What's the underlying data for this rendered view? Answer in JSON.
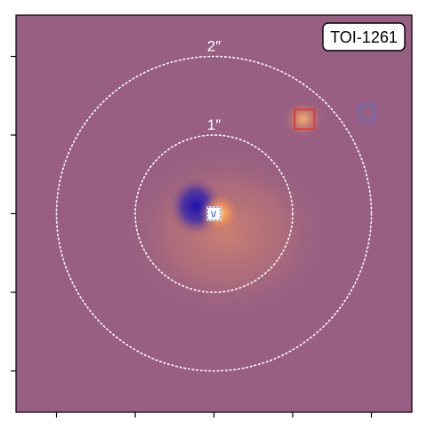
{
  "chart_data": {
    "type": "heatmap",
    "target": "TOI-1261",
    "rings": [
      {
        "radius_arcsec": 1,
        "label": "1″"
      },
      {
        "radius_arcsec": 2,
        "label": "2″"
      }
    ],
    "x_ticks_arcsec": [
      -2,
      -1,
      0,
      1,
      2
    ],
    "y_ticks_arcsec": [
      2,
      1,
      0,
      -1,
      -2
    ],
    "axis_range_arcsec": [
      -2.5,
      2.5
    ],
    "sources": [
      {
        "x": 0.0,
        "y": 0.0,
        "marker": "square",
        "color": "#ffffff",
        "style": "filled",
        "note": "target"
      },
      {
        "x": 1.15,
        "y": 1.2,
        "marker": "square",
        "color": "#e23a2a",
        "style": "solid"
      },
      {
        "x": 1.95,
        "y": 1.28,
        "marker": "dashed-circle-square",
        "color": "#4a7fd8",
        "style": "dashed"
      }
    ],
    "colors": {
      "background": "#985f83",
      "negative_lobe": "#2a1fb0",
      "positive_lobe": "#f0a060",
      "halo": "#c9786f",
      "source2_glow": "#f3a060"
    }
  }
}
